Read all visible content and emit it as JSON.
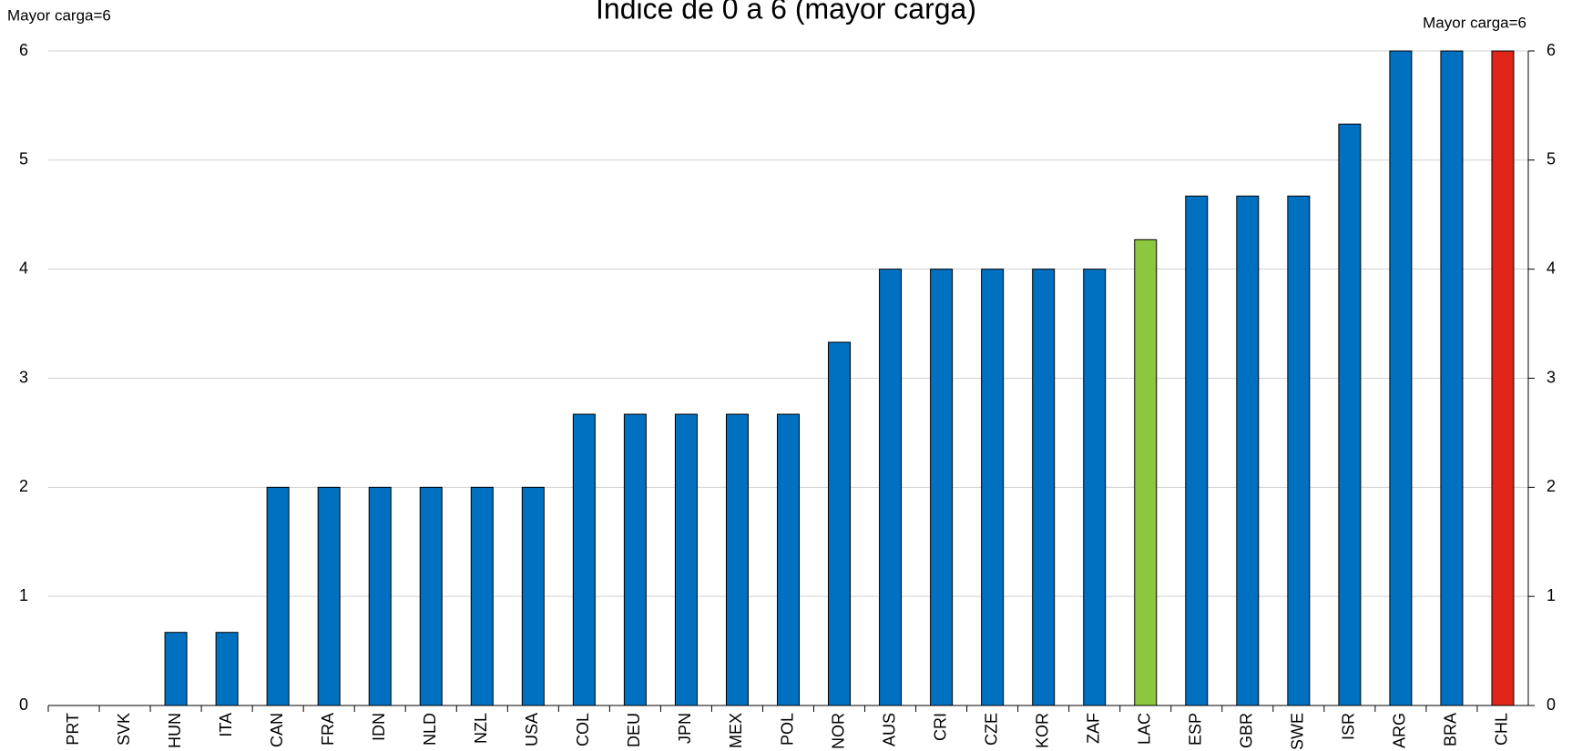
{
  "chart_data": {
    "type": "bar",
    "title": "Índice de 0 a 6 (mayor carga)",
    "y_label": "Mayor carga=6",
    "y2_label": "Mayor carga=6",
    "categories": [
      "PRT",
      "SVK",
      "HUN",
      "ITA",
      "CAN",
      "FRA",
      "IDN",
      "NLD",
      "NZL",
      "USA",
      "COL",
      "DEU",
      "JPN",
      "MEX",
      "POL",
      "NOR",
      "AUS",
      "CRI",
      "CZE",
      "KOR",
      "ZAF",
      "LAC",
      "ESP",
      "GBR",
      "SWE",
      "ISR",
      "ARG",
      "BRA",
      "CHL"
    ],
    "values": [
      0,
      0,
      0.67,
      0.67,
      2,
      2,
      2,
      2,
      2,
      2,
      2.67,
      2.67,
      2.67,
      2.67,
      2.67,
      3.33,
      4,
      4,
      4,
      4,
      4,
      4.27,
      4.67,
      4.67,
      4.67,
      5.33,
      6,
      6,
      6
    ],
    "colors": [
      "#0070c0",
      "#0070c0",
      "#0070c0",
      "#0070c0",
      "#0070c0",
      "#0070c0",
      "#0070c0",
      "#0070c0",
      "#0070c0",
      "#0070c0",
      "#0070c0",
      "#0070c0",
      "#0070c0",
      "#0070c0",
      "#0070c0",
      "#0070c0",
      "#0070c0",
      "#0070c0",
      "#0070c0",
      "#0070c0",
      "#0070c0",
      "#8dc63f",
      "#0070c0",
      "#0070c0",
      "#0070c0",
      "#0070c0",
      "#0070c0",
      "#0070c0",
      "#e1251b"
    ],
    "ylim": [
      0,
      6
    ],
    "yticks": [
      0,
      1,
      2,
      3,
      4,
      5,
      6
    ],
    "y2lim": [
      0,
      6
    ],
    "y2ticks": [
      0,
      1,
      2,
      3,
      4,
      5,
      6
    ],
    "grid": true
  }
}
